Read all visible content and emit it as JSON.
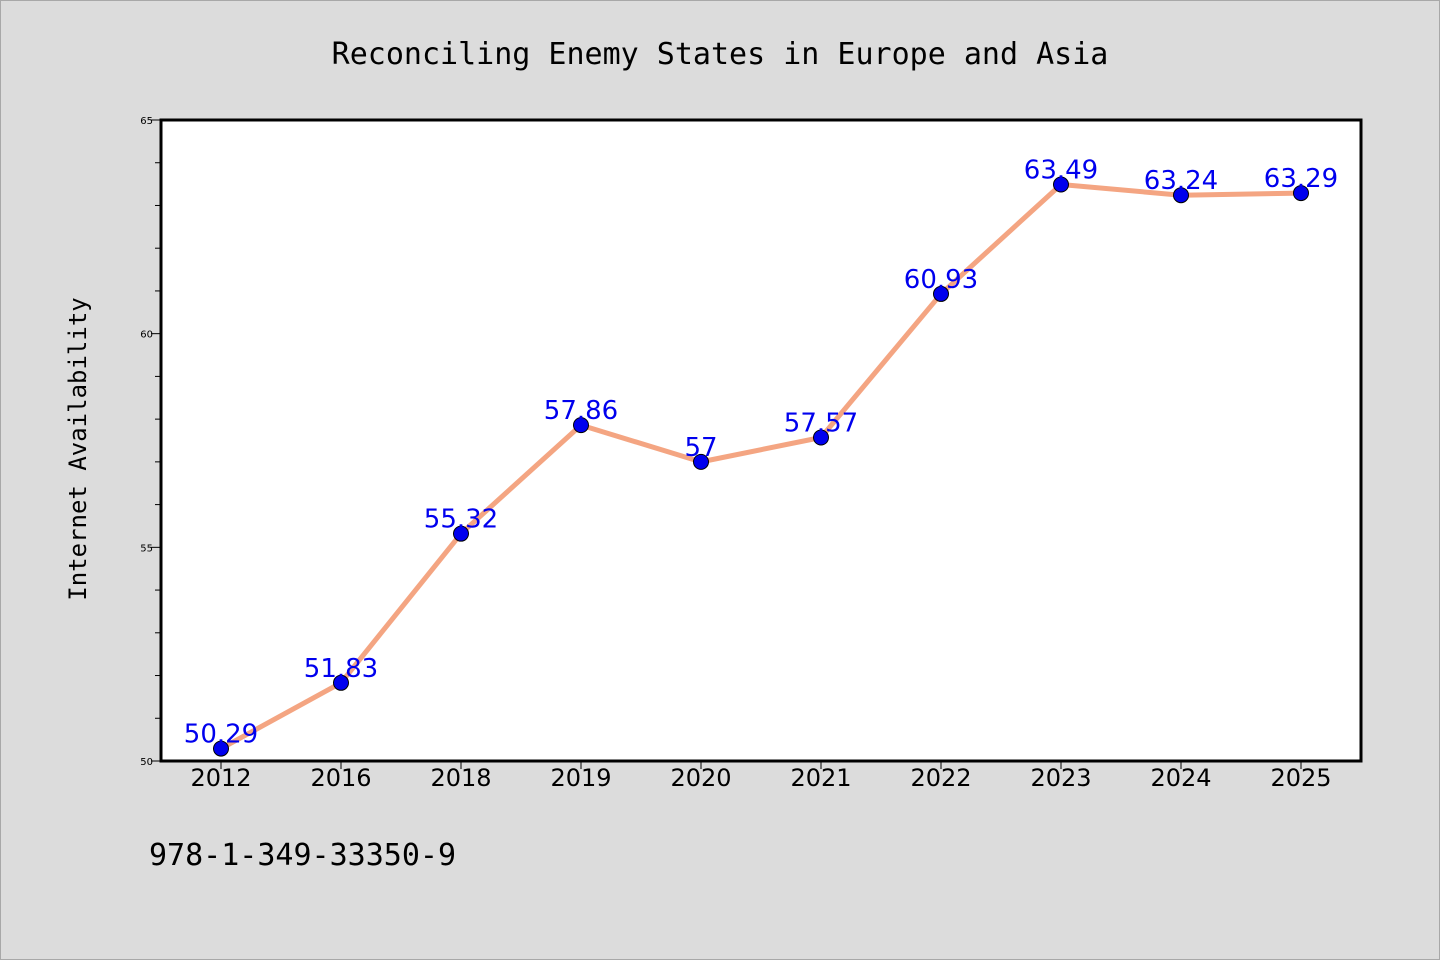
{
  "chart_data": {
    "type": "line",
    "title": "Reconciling Enemy States in Europe and Asia",
    "xlabel": "",
    "ylabel": "Internet Availability",
    "categories": [
      "2012",
      "2016",
      "2018",
      "2019",
      "2020",
      "2021",
      "2022",
      "2023",
      "2024",
      "2025"
    ],
    "series": [
      {
        "values": [
          50.29,
          51.83,
          55.32,
          57.86,
          57,
          57.57,
          60.93,
          63.49,
          63.24,
          63.29
        ],
        "data_labels": [
          "50.29",
          "51.83",
          "55.32",
          "57.86",
          "57",
          "57.57",
          "60.93",
          "63.49",
          "63.24",
          "63.29"
        ],
        "line_color": "#f4a582",
        "marker_color": "#0000ee",
        "label_color": "#0000ee"
      }
    ],
    "ylim": [
      50,
      65
    ],
    "yticks": [
      50,
      55,
      60,
      65
    ],
    "ytick_labels": [
      "50",
      "55",
      "60",
      "65"
    ],
    "y_minor_step": 1,
    "grid": false,
    "legend": "none"
  },
  "footnote": "978-1-349-33350-9",
  "colors": {
    "figure_background": "#dcdcdc",
    "plot_background": "#ffffff",
    "axes": "#000000"
  }
}
